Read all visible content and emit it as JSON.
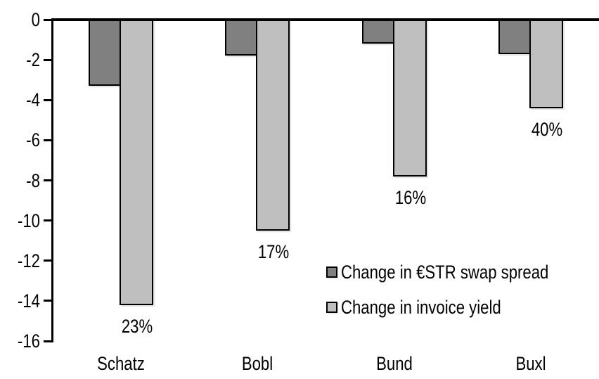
{
  "chart_data": {
    "type": "bar",
    "title": "",
    "xlabel": "",
    "ylabel": "",
    "categories": [
      "Schatz",
      "Bobl",
      "Bund",
      "Buxl"
    ],
    "series": [
      {
        "name": "Change in €STR swap spread",
        "color": "#808080",
        "values": [
          -3.3,
          -1.8,
          -1.2,
          -1.7
        ]
      },
      {
        "name": "Change in invoice yield",
        "color": "#bfbfbf",
        "values": [
          -14.2,
          -10.5,
          -7.8,
          -4.4
        ],
        "value_labels": [
          "23%",
          "17%",
          "16%",
          "40%"
        ]
      }
    ],
    "y_axis": {
      "min": -16,
      "max": 0,
      "tick_step": 2,
      "tick_labels": [
        "0",
        "-2",
        "-4",
        "-6",
        "-8",
        "-10",
        "-12",
        "-14",
        "-16"
      ]
    },
    "grid": false,
    "legend_position": "inside-right",
    "bar_border_color": "#000000",
    "axis_color": "#000000",
    "background": "#ffffff"
  }
}
